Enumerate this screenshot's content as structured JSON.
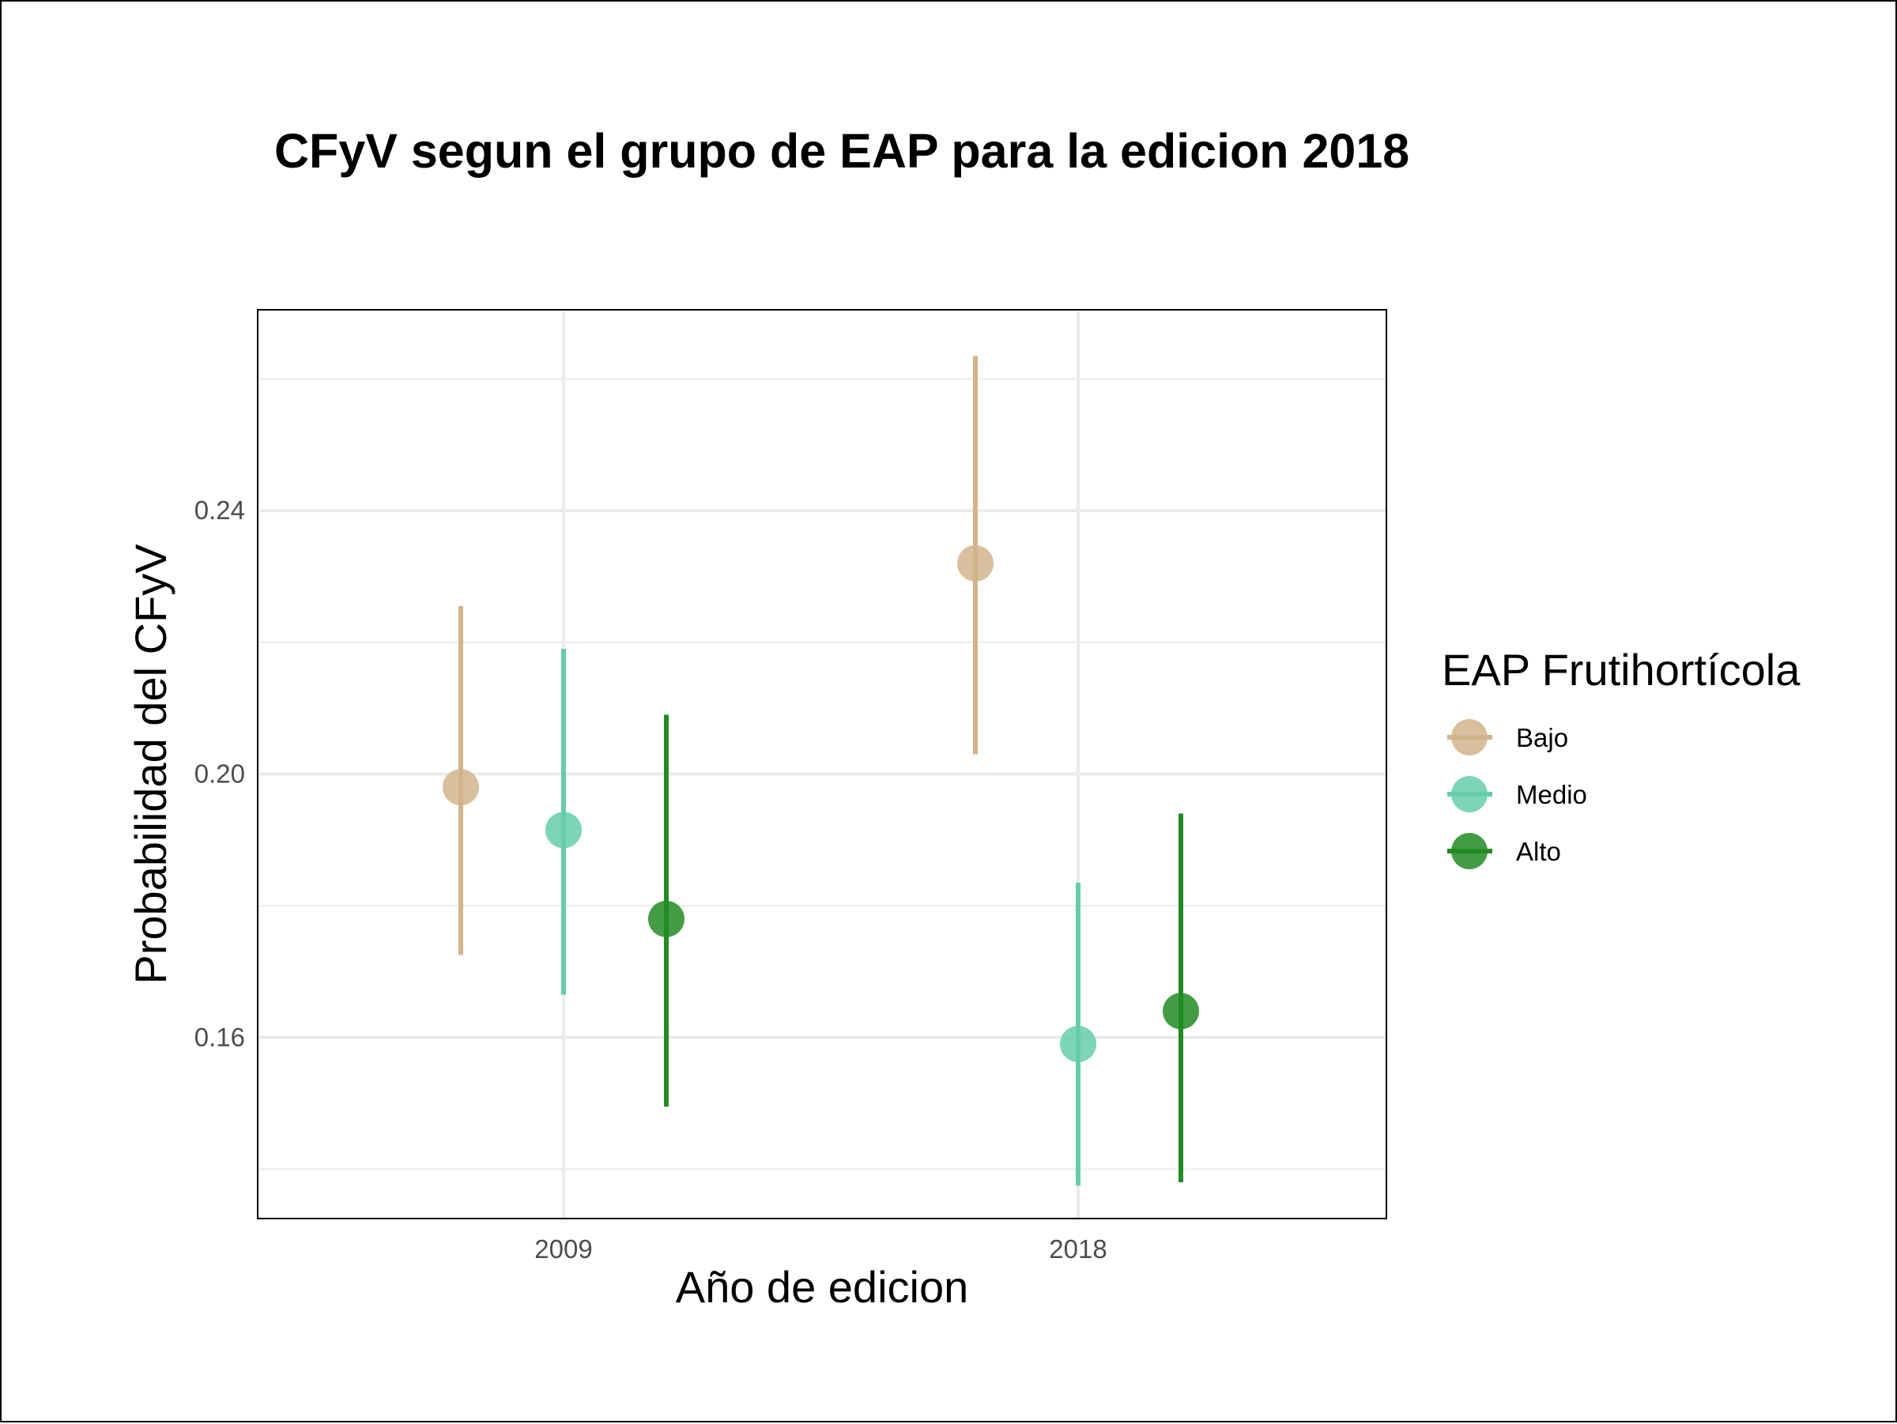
{
  "chart_data": {
    "type": "scatter",
    "title": "CFyV segun el grupo de EAP para la edicion 2018",
    "xlabel": "Año de edicion",
    "ylabel": "Probabilidad del CFyV",
    "categories": [
      "2009",
      "2018"
    ],
    "yticks": [
      "0.16",
      "0.20",
      "0.24"
    ],
    "ylim": [
      0.1325,
      0.2705
    ],
    "grid": true,
    "legend": {
      "title": "EAP Frutihortícola",
      "position": "right"
    },
    "series": [
      {
        "name": "Bajo",
        "color": "#D2B48C",
        "points": [
          {
            "x": "2009",
            "y": 0.198,
            "low": 0.1725,
            "high": 0.2255
          },
          {
            "x": "2018",
            "y": 0.232,
            "low": 0.203,
            "high": 0.2635
          }
        ]
      },
      {
        "name": "Medio",
        "color": "#66CDAA",
        "points": [
          {
            "x": "2009",
            "y": 0.1915,
            "low": 0.1665,
            "high": 0.219
          },
          {
            "x": "2018",
            "y": 0.159,
            "low": 0.1375,
            "high": 0.1835
          }
        ]
      },
      {
        "name": "Alto",
        "color": "#228B22",
        "points": [
          {
            "x": "2009",
            "y": 0.178,
            "low": 0.1495,
            "high": 0.209
          },
          {
            "x": "2018",
            "y": 0.164,
            "low": 0.138,
            "high": 0.194
          }
        ]
      }
    ]
  }
}
